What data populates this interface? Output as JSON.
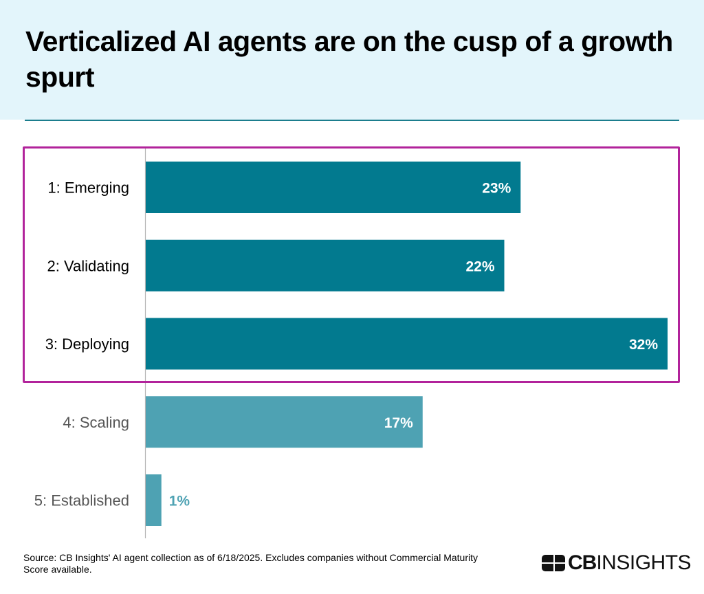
{
  "header": {
    "title": "Verticalized AI agents are on the cusp of a growth spurt"
  },
  "colors": {
    "header_bg": "#e3f5fb",
    "rule": "#1b7d8d",
    "highlight_border": "#b2239b",
    "bar_primary": "#027a8f",
    "bar_secondary": "#4ea2b3",
    "label_primary": "#000000",
    "label_secondary": "#555555"
  },
  "chart_data": {
    "type": "bar",
    "orientation": "horizontal",
    "title": "Verticalized AI agents are on the cusp of a growth spurt",
    "xlabel": "",
    "ylabel": "",
    "categories": [
      "1: Emerging",
      "2: Validating",
      "3: Deploying",
      "4: Scaling",
      "5: Established"
    ],
    "values": [
      23,
      22,
      32,
      17,
      1
    ],
    "value_labels": [
      "23%",
      "22%",
      "32%",
      "17%",
      "1%"
    ],
    "unit": "%",
    "xlim": [
      0,
      32
    ],
    "grid": false,
    "highlighted_categories": [
      "1: Emerging",
      "2: Validating",
      "3: Deploying"
    ],
    "highlight_annotation": "box"
  },
  "footer": {
    "source": "Source: CB Insights' AI agent collection as of 6/18/2025. Excludes companies without Commercial Maturity Score available.",
    "logo_bold": "CB",
    "logo_light": "INSIGHTS"
  }
}
